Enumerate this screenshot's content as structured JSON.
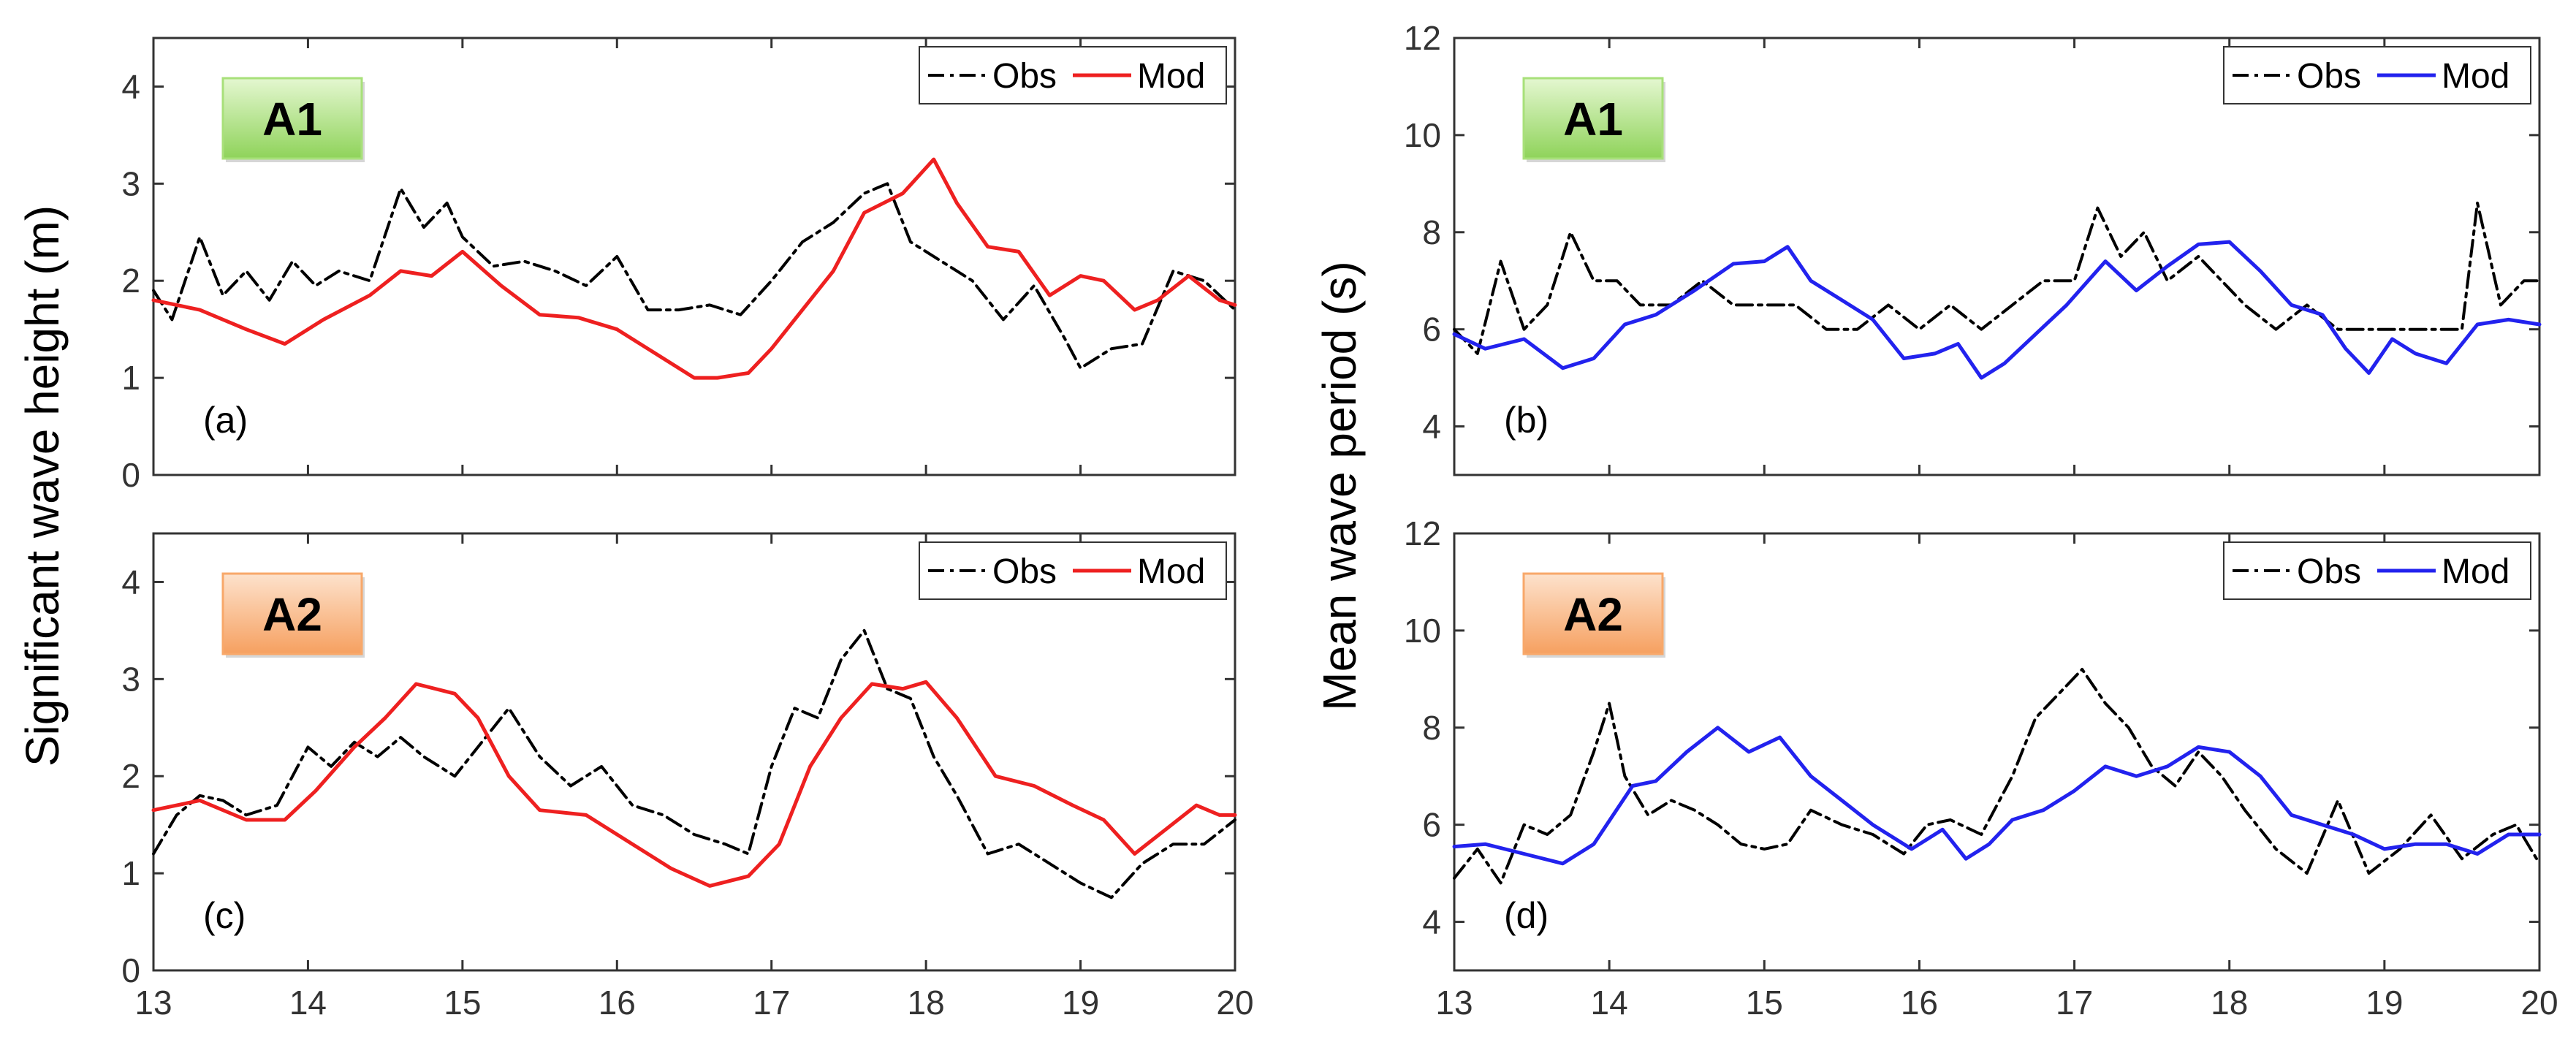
{
  "figure": {
    "ylabel_left": "Significant wave height (m)",
    "ylabel_right": "Mean wave  period (s)"
  },
  "chart_data": [
    {
      "id": "a",
      "type": "line",
      "panel_label": "(a)",
      "badge": "A1",
      "badge_color": "#a8e07a",
      "xlim": [
        13,
        20
      ],
      "ylim": [
        0,
        4.5
      ],
      "xticks": [
        13,
        14,
        15,
        16,
        17,
        18,
        19,
        20
      ],
      "yticks": [
        0,
        1,
        2,
        3,
        4
      ],
      "show_xticklabels": false,
      "legend_position": "top-right",
      "series": [
        {
          "name": "Obs",
          "color": "#000000",
          "style": "dashdot",
          "x": [
            13,
            13.12,
            13.3,
            13.45,
            13.6,
            13.75,
            13.9,
            14.05,
            14.2,
            14.4,
            14.6,
            14.75,
            14.9,
            15.0,
            15.2,
            15.4,
            15.6,
            15.8,
            16.0,
            16.2,
            16.4,
            16.6,
            16.8,
            17.0,
            17.2,
            17.4,
            17.6,
            17.75,
            17.9,
            18.1,
            18.3,
            18.5,
            18.7,
            18.9,
            19.0,
            19.2,
            19.4,
            19.6,
            19.8,
            20.0
          ],
          "y": [
            1.9,
            1.6,
            2.45,
            1.85,
            2.1,
            1.8,
            2.2,
            1.95,
            2.1,
            2.0,
            2.95,
            2.55,
            2.8,
            2.45,
            2.15,
            2.2,
            2.1,
            1.95,
            2.25,
            1.7,
            1.7,
            1.75,
            1.65,
            2.0,
            2.4,
            2.6,
            2.9,
            3.0,
            2.4,
            2.2,
            2.0,
            1.6,
            1.95,
            1.4,
            1.1,
            1.3,
            1.35,
            2.1,
            2.0,
            1.7
          ]
        },
        {
          "name": "Mod",
          "color": "#ee2020",
          "style": "solid",
          "x": [
            13,
            13.3,
            13.6,
            13.85,
            14.1,
            14.4,
            14.6,
            14.8,
            15.0,
            15.25,
            15.5,
            15.75,
            16.0,
            16.25,
            16.5,
            16.65,
            16.85,
            17.0,
            17.2,
            17.4,
            17.6,
            17.85,
            18.05,
            18.2,
            18.4,
            18.6,
            18.8,
            19.0,
            19.15,
            19.35,
            19.5,
            19.7,
            19.9,
            20.0
          ],
          "y": [
            1.8,
            1.7,
            1.5,
            1.35,
            1.6,
            1.85,
            2.1,
            2.05,
            2.3,
            1.95,
            1.65,
            1.62,
            1.5,
            1.25,
            1.0,
            1.0,
            1.05,
            1.3,
            1.7,
            2.1,
            2.7,
            2.9,
            3.25,
            2.8,
            2.35,
            2.3,
            1.85,
            2.05,
            2.0,
            1.7,
            1.8,
            2.05,
            1.8,
            1.75
          ]
        }
      ]
    },
    {
      "id": "b",
      "type": "line",
      "panel_label": "(b)",
      "badge": "A1",
      "badge_color": "#a8e07a",
      "xlim": [
        13,
        20
      ],
      "ylim": [
        3,
        12
      ],
      "xticks": [
        13,
        14,
        15,
        16,
        17,
        18,
        19,
        20
      ],
      "yticks": [
        4,
        6,
        8,
        10,
        12
      ],
      "show_xticklabels": false,
      "legend_position": "top-right",
      "series": [
        {
          "name": "Obs",
          "color": "#000000",
          "style": "dashdot",
          "x": [
            13,
            13.15,
            13.3,
            13.45,
            13.6,
            13.75,
            13.9,
            14.05,
            14.2,
            14.4,
            14.6,
            14.8,
            15.0,
            15.2,
            15.4,
            15.6,
            15.8,
            16.0,
            16.2,
            16.4,
            16.6,
            16.8,
            17.0,
            17.15,
            17.3,
            17.45,
            17.6,
            17.8,
            17.95,
            18.1,
            18.3,
            18.5,
            18.7,
            18.9,
            19.1,
            19.3,
            19.5,
            19.6,
            19.75,
            19.9,
            20.0
          ],
          "y": [
            6.0,
            5.5,
            7.4,
            6.0,
            6.5,
            8.0,
            7.0,
            7.0,
            6.5,
            6.5,
            7.0,
            6.5,
            6.5,
            6.5,
            6.0,
            6.0,
            6.5,
            6.0,
            6.5,
            6.0,
            6.5,
            7.0,
            7.0,
            8.5,
            7.5,
            8.0,
            7.0,
            7.5,
            7.0,
            6.5,
            6.0,
            6.5,
            6.0,
            6.0,
            6.0,
            6.0,
            6.0,
            8.6,
            6.5,
            7.0,
            7.0
          ]
        },
        {
          "name": "Mod",
          "color": "#2222ee",
          "style": "solid",
          "x": [
            13,
            13.2,
            13.45,
            13.7,
            13.9,
            14.1,
            14.3,
            14.55,
            14.8,
            15.0,
            15.15,
            15.3,
            15.5,
            15.7,
            15.9,
            16.1,
            16.25,
            16.4,
            16.55,
            16.75,
            16.95,
            17.2,
            17.4,
            17.6,
            17.8,
            18.0,
            18.2,
            18.4,
            18.6,
            18.75,
            18.9,
            19.05,
            19.2,
            19.4,
            19.6,
            19.8,
            20.0
          ],
          "y": [
            5.9,
            5.6,
            5.8,
            5.2,
            5.4,
            6.1,
            6.3,
            6.8,
            7.35,
            7.4,
            7.7,
            7.0,
            6.6,
            6.2,
            5.4,
            5.5,
            5.7,
            5.0,
            5.3,
            5.9,
            6.5,
            7.4,
            6.8,
            7.3,
            7.75,
            7.8,
            7.2,
            6.5,
            6.3,
            5.6,
            5.1,
            5.8,
            5.5,
            5.3,
            6.1,
            6.2,
            6.1
          ]
        }
      ]
    },
    {
      "id": "c",
      "type": "line",
      "panel_label": "(c)",
      "badge": "A2",
      "badge_color": "#f8a86a",
      "xlim": [
        13,
        20
      ],
      "ylim": [
        0,
        4.5
      ],
      "xticks": [
        13,
        14,
        15,
        16,
        17,
        18,
        19,
        20
      ],
      "yticks": [
        0,
        1,
        2,
        3,
        4
      ],
      "show_xticklabels": true,
      "legend_position": "top-right",
      "series": [
        {
          "name": "Obs",
          "color": "#000000",
          "style": "dashdot",
          "x": [
            13,
            13.15,
            13.3,
            13.45,
            13.6,
            13.8,
            14.0,
            14.15,
            14.3,
            14.45,
            14.6,
            14.75,
            14.95,
            15.1,
            15.3,
            15.5,
            15.7,
            15.9,
            16.1,
            16.3,
            16.5,
            16.7,
            16.85,
            17.0,
            17.15,
            17.3,
            17.45,
            17.6,
            17.75,
            17.9,
            18.05,
            18.2,
            18.4,
            18.6,
            18.8,
            19.0,
            19.2,
            19.4,
            19.6,
            19.8,
            20.0
          ],
          "y": [
            1.2,
            1.6,
            1.8,
            1.75,
            1.6,
            1.7,
            2.3,
            2.1,
            2.35,
            2.2,
            2.4,
            2.2,
            2.0,
            2.3,
            2.7,
            2.2,
            1.9,
            2.1,
            1.7,
            1.6,
            1.4,
            1.3,
            1.2,
            2.1,
            2.7,
            2.6,
            3.2,
            3.5,
            2.9,
            2.8,
            2.2,
            1.8,
            1.2,
            1.3,
            1.1,
            0.9,
            0.75,
            1.1,
            1.3,
            1.3,
            1.55
          ]
        },
        {
          "name": "Mod",
          "color": "#ee2020",
          "style": "solid",
          "x": [
            13,
            13.3,
            13.6,
            13.85,
            14.05,
            14.3,
            14.5,
            14.7,
            14.95,
            15.1,
            15.3,
            15.5,
            15.8,
            16.1,
            16.35,
            16.6,
            16.85,
            17.05,
            17.25,
            17.45,
            17.65,
            17.85,
            18.0,
            18.2,
            18.45,
            18.7,
            18.95,
            19.15,
            19.35,
            19.55,
            19.75,
            19.9,
            20.0
          ],
          "y": [
            1.65,
            1.75,
            1.55,
            1.55,
            1.85,
            2.3,
            2.6,
            2.95,
            2.85,
            2.6,
            2.0,
            1.65,
            1.6,
            1.3,
            1.05,
            0.87,
            0.97,
            1.3,
            2.1,
            2.6,
            2.95,
            2.9,
            2.97,
            2.6,
            2.0,
            1.9,
            1.7,
            1.55,
            1.2,
            1.45,
            1.7,
            1.6,
            1.6
          ]
        }
      ]
    },
    {
      "id": "d",
      "type": "line",
      "panel_label": "(d)",
      "badge": "A2",
      "badge_color": "#f8a86a",
      "xlim": [
        13,
        20
      ],
      "ylim": [
        3,
        12
      ],
      "xticks": [
        13,
        14,
        15,
        16,
        17,
        18,
        19,
        20
      ],
      "yticks": [
        4,
        6,
        8,
        10,
        12
      ],
      "show_xticklabels": true,
      "legend_position": "top-right",
      "series": [
        {
          "name": "Obs",
          "color": "#000000",
          "style": "dashdot",
          "x": [
            13,
            13.15,
            13.3,
            13.45,
            13.6,
            13.75,
            13.9,
            14.0,
            14.1,
            14.25,
            14.4,
            14.55,
            14.7,
            14.85,
            15.0,
            15.15,
            15.3,
            15.5,
            15.7,
            15.9,
            16.05,
            16.2,
            16.4,
            16.6,
            16.75,
            16.9,
            17.05,
            17.2,
            17.35,
            17.5,
            17.65,
            17.8,
            17.95,
            18.1,
            18.3,
            18.5,
            18.7,
            18.9,
            19.1,
            19.3,
            19.5,
            19.7,
            19.85,
            20.0
          ],
          "y": [
            4.9,
            5.5,
            4.8,
            6.0,
            5.8,
            6.2,
            7.5,
            8.5,
            7.0,
            6.2,
            6.5,
            6.3,
            6.0,
            5.6,
            5.5,
            5.6,
            6.3,
            6.0,
            5.8,
            5.4,
            6.0,
            6.1,
            5.8,
            7.0,
            8.2,
            8.7,
            9.2,
            8.5,
            8.0,
            7.2,
            6.8,
            7.5,
            7.0,
            6.3,
            5.5,
            5.0,
            6.5,
            5.0,
            5.5,
            6.2,
            5.3,
            5.8,
            6.0,
            5.2
          ]
        },
        {
          "name": "Mod",
          "color": "#2222ee",
          "style": "solid",
          "x": [
            13,
            13.2,
            13.45,
            13.7,
            13.9,
            14.15,
            14.3,
            14.5,
            14.7,
            14.9,
            15.1,
            15.3,
            15.5,
            15.7,
            15.95,
            16.15,
            16.3,
            16.45,
            16.6,
            16.8,
            17.0,
            17.2,
            17.4,
            17.6,
            17.8,
            18.0,
            18.2,
            18.4,
            18.6,
            18.8,
            19.0,
            19.2,
            19.4,
            19.6,
            19.8,
            20.0
          ],
          "y": [
            5.55,
            5.6,
            5.4,
            5.2,
            5.6,
            6.8,
            6.9,
            7.5,
            8.0,
            7.5,
            7.8,
            7.0,
            6.5,
            6.0,
            5.5,
            5.9,
            5.3,
            5.6,
            6.1,
            6.3,
            6.7,
            7.2,
            7.0,
            7.2,
            7.6,
            7.5,
            7.0,
            6.2,
            6.0,
            5.8,
            5.5,
            5.6,
            5.6,
            5.4,
            5.8,
            5.8
          ]
        }
      ]
    }
  ]
}
